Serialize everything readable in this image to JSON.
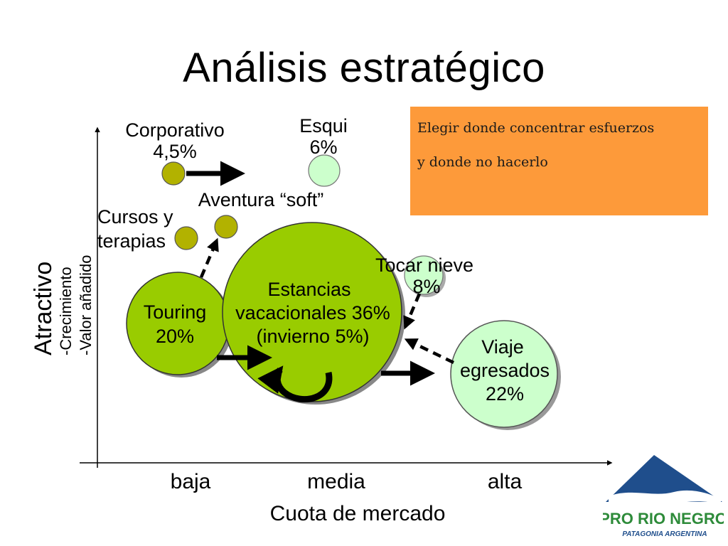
{
  "title": "Análisis estratégico",
  "note": {
    "line1": "Elegir donde concentrar esfuerzos",
    "line2": "y donde no hacerlo"
  },
  "axes": {
    "y_main": "Atractivo",
    "y_sub1": "-Crecimiento",
    "y_sub2": "-Valor añadido",
    "x_ticks": [
      "baja",
      "media",
      "alta"
    ],
    "x_label": "Cuota de mercado"
  },
  "bubbles": {
    "corporativo": {
      "name": "Corporativo",
      "pct": "4,5%"
    },
    "esqui": {
      "name": "Esqui",
      "pct": "6%"
    },
    "aventura": {
      "name": "Aventura “soft”"
    },
    "cursos": {
      "line1": "Cursos y",
      "line2": "terapias"
    },
    "tocar": {
      "name": "Tocar nieve",
      "pct": "8%"
    },
    "touring": {
      "name": "Touring",
      "pct": "20%"
    },
    "estancias": {
      "line1": "Estancias",
      "line2": "vacacionales 36%",
      "line3": "(invierno 5%)"
    },
    "viaje": {
      "line1": "Viaje",
      "line2": "egresados",
      "line3": "22%"
    }
  },
  "logo": {
    "line1": "PRO RIO NEGRO",
    "line2": "PATAGONIA ARGENTINA"
  },
  "colors": {
    "big_bubble": "#99cc00",
    "light_bubble": "#ccffcc",
    "small_bubble": "#b2b200",
    "note_bg": "#fd9a3a",
    "logo_blue": "#1f4e8c",
    "logo_green": "#2e8b3a"
  }
}
